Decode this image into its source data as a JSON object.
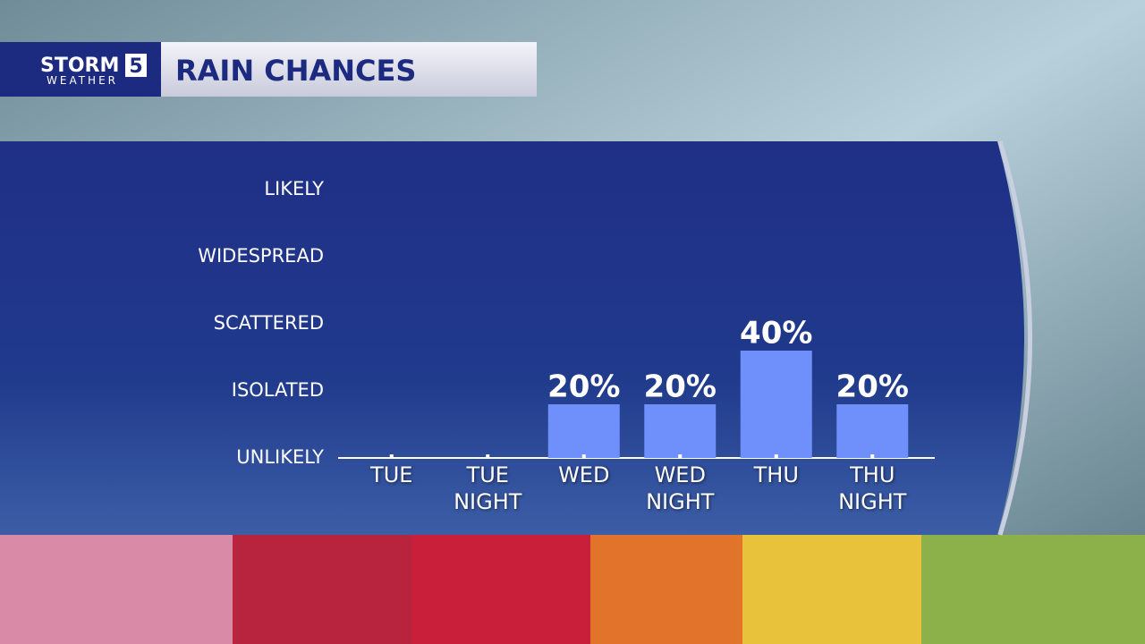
{
  "chart_data": {
    "type": "bar",
    "title": "RAIN CHANCES",
    "logo": {
      "top": "STORM",
      "badge": "5",
      "bottom": "WEATHER"
    },
    "categories": [
      "TUE",
      "TUE NIGHT",
      "WED",
      "WED NIGHT",
      "THU",
      "THU NIGHT"
    ],
    "values": [
      0,
      0,
      20,
      20,
      40,
      20
    ],
    "value_labels": [
      null,
      null,
      "20%",
      "20%",
      "40%",
      "20%"
    ],
    "color": "#6f8ffb",
    "ylim": [
      0,
      100
    ],
    "yticks": [
      {
        "value": 0,
        "label": "UNLIKELY"
      },
      {
        "value": 25,
        "label": "ISOLATED"
      },
      {
        "value": 50,
        "label": "SCATTERED"
      },
      {
        "value": 75,
        "label": "WIDESPREAD"
      },
      {
        "value": 100,
        "label": "LIKELY"
      }
    ]
  }
}
